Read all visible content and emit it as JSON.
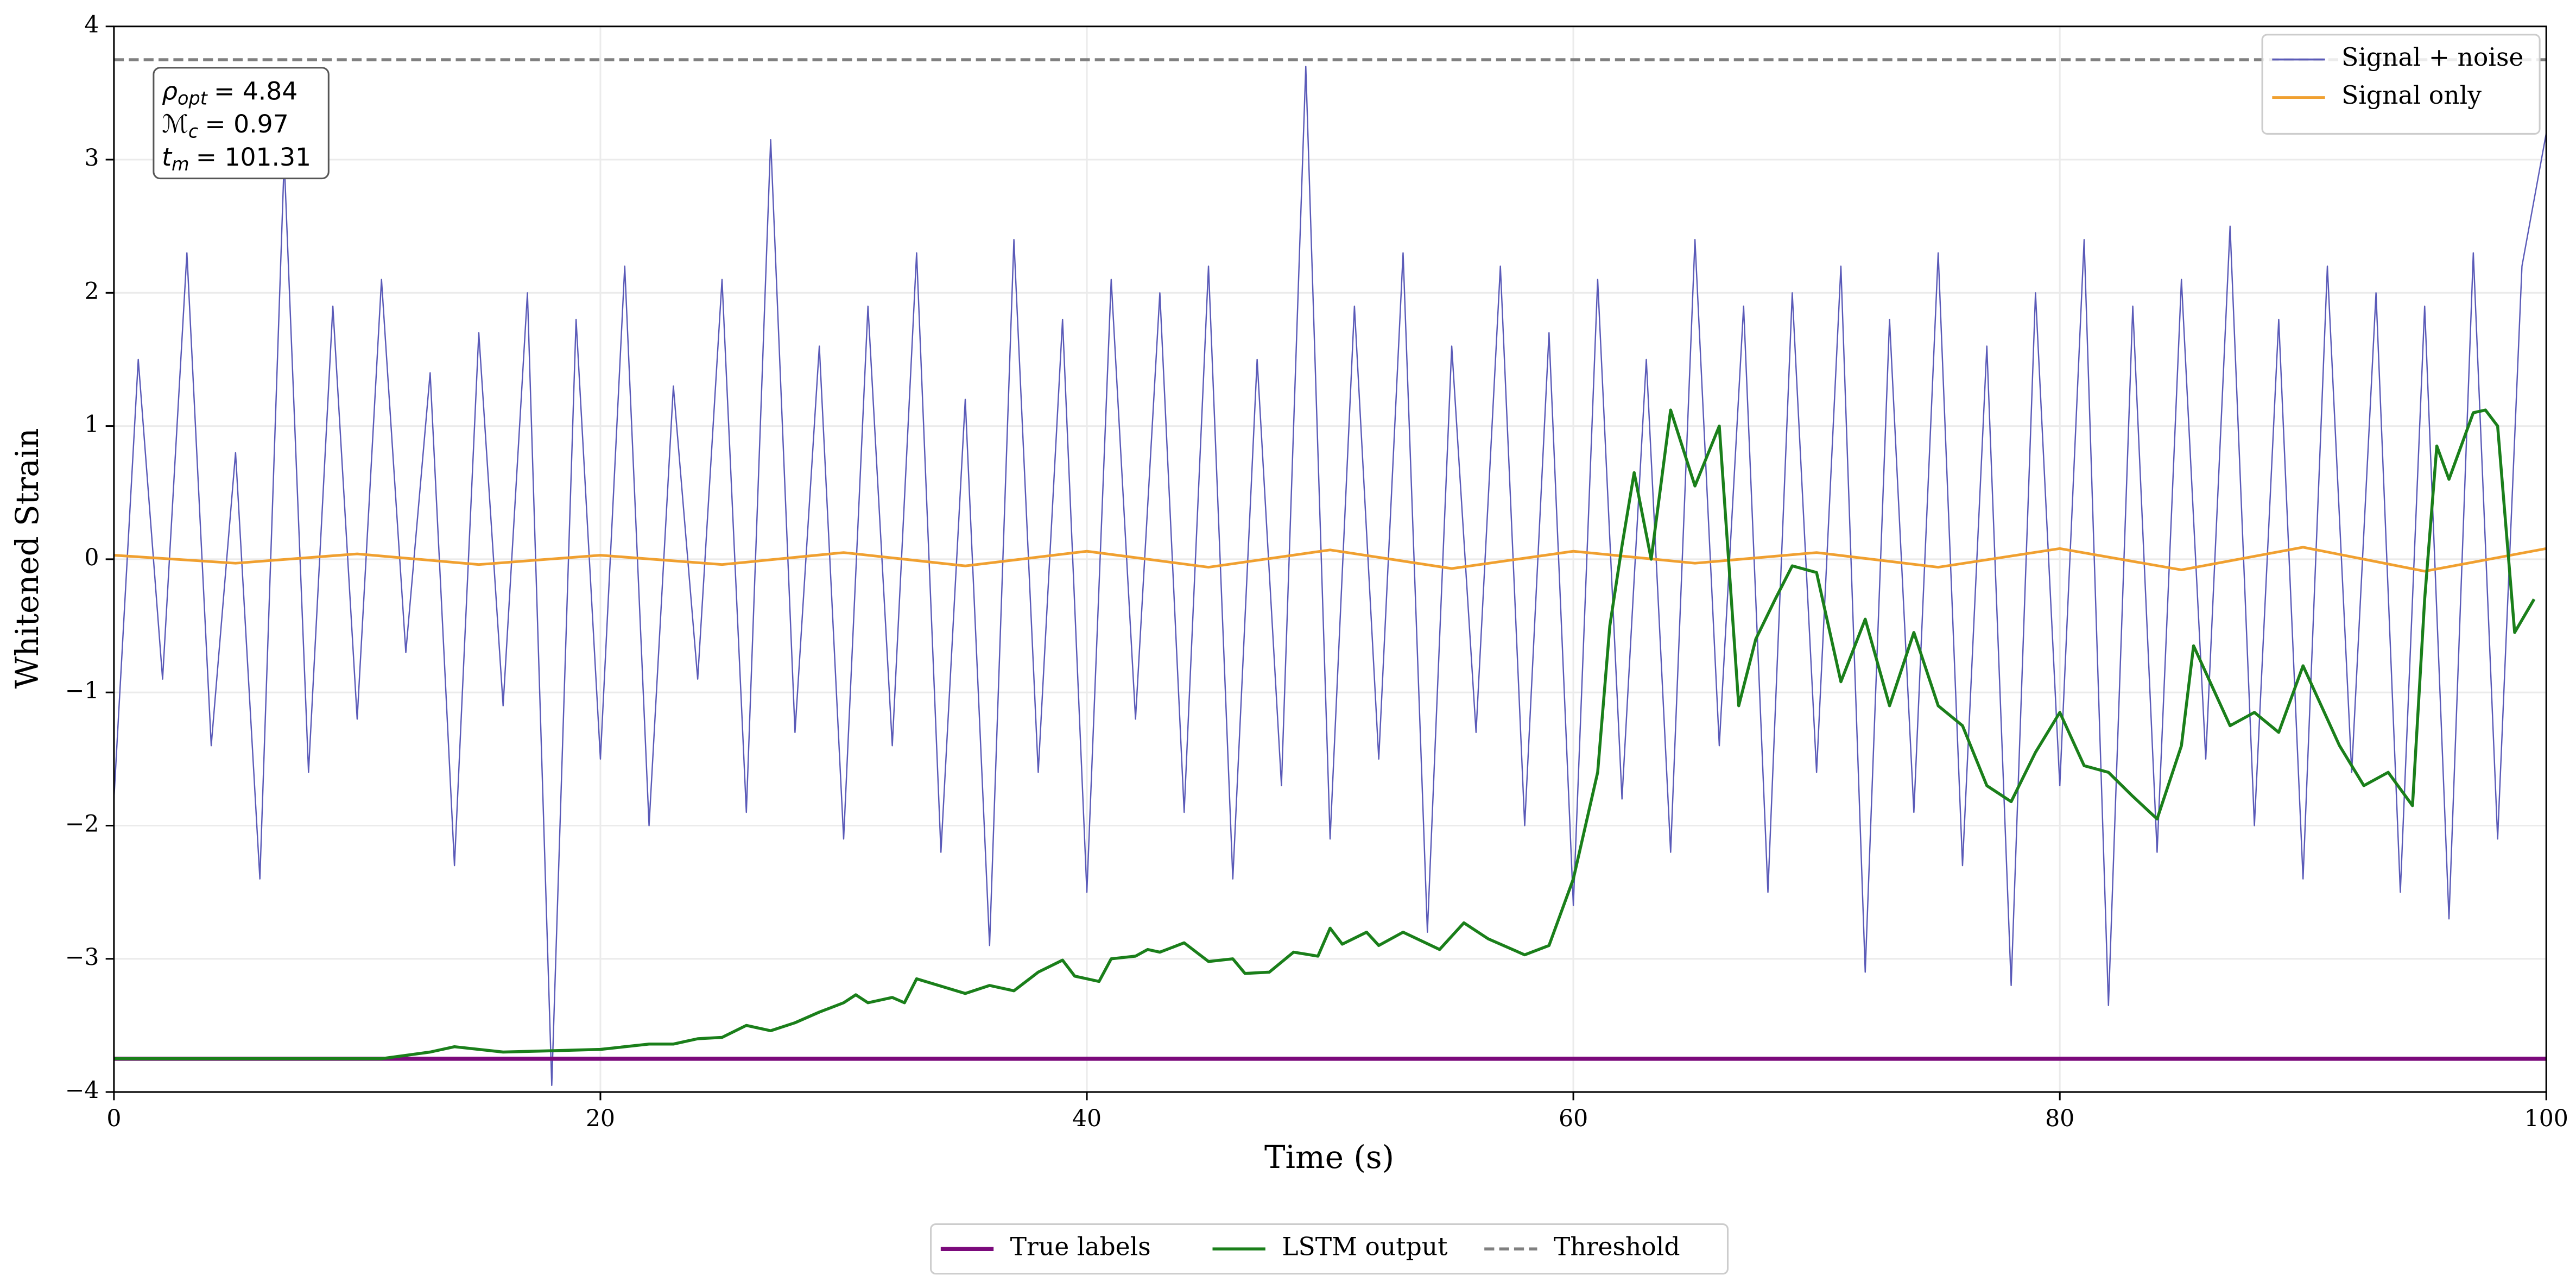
{
  "chart_data": {
    "type": "line",
    "xlabel": "Time (s)",
    "ylabel": "Whitened Strain",
    "xlim": [
      0,
      100
    ],
    "ylim": [
      -4,
      4
    ],
    "xticks": [
      0,
      20,
      40,
      60,
      80,
      100
    ],
    "yticks": [
      {
        "value": -4,
        "label": "−4"
      },
      {
        "value": -3,
        "label": "−3"
      },
      {
        "value": -2,
        "label": "−2"
      },
      {
        "value": -1,
        "label": "−1"
      },
      0,
      1,
      2,
      3,
      4
    ],
    "grid": true,
    "annotation": [
      {
        "symbol": "ρ",
        "sub": "opt",
        "text": "= 4.84"
      },
      {
        "symbol": "ℳ",
        "sub": "c",
        "text": "= 0.97"
      },
      {
        "symbol": "t",
        "sub": "m",
        "text": "= 101.31"
      }
    ],
    "series": [
      {
        "name": "Signal + noise",
        "color": "#5a5ab8",
        "line_width": 0.8,
        "legend": "upper right",
        "x": [
          0,
          1,
          2,
          3,
          4,
          5,
          6,
          7,
          8,
          9,
          10,
          11,
          12,
          13,
          14,
          15,
          16,
          17,
          18,
          19,
          20,
          21,
          22,
          23,
          24,
          25,
          26,
          27,
          28,
          29,
          30,
          31,
          32,
          33,
          34,
          35,
          36,
          37,
          38,
          39,
          40,
          41,
          42,
          43,
          44,
          45,
          46,
          47,
          48,
          49,
          50,
          51,
          52,
          53,
          54,
          55,
          56,
          57,
          58,
          59,
          60,
          61,
          62,
          63,
          64,
          65,
          66,
          67,
          68,
          69,
          70,
          71,
          72,
          73,
          74,
          75,
          76,
          77,
          78,
          79,
          80,
          81,
          82,
          83,
          84,
          85,
          86,
          87,
          88,
          89,
          90,
          91,
          92,
          93,
          94,
          95,
          96,
          97,
          98,
          99,
          100
        ],
        "values": [
          -1.8,
          1.5,
          -0.9,
          2.3,
          -1.4,
          0.8,
          -2.4,
          3.0,
          -1.6,
          1.9,
          -1.2,
          2.1,
          -0.7,
          1.4,
          -2.3,
          1.7,
          -1.1,
          2.0,
          -3.95,
          1.8,
          -1.5,
          2.2,
          -2.0,
          1.3,
          -0.9,
          2.1,
          -1.9,
          3.15,
          -1.3,
          1.6,
          -2.1,
          1.9,
          -1.4,
          2.3,
          -2.2,
          1.2,
          -2.9,
          2.4,
          -1.6,
          1.8,
          -2.5,
          2.1,
          -1.2,
          2.0,
          -1.9,
          2.2,
          -2.4,
          1.5,
          -1.7,
          3.7,
          -2.1,
          1.9,
          -1.5,
          2.3,
          -2.8,
          1.6,
          -1.3,
          2.2,
          -2.0,
          1.7,
          -2.6,
          2.1,
          -1.8,
          1.5,
          -2.2,
          2.4,
          -1.4,
          1.9,
          -2.5,
          2.0,
          -1.6,
          2.2,
          -3.1,
          1.8,
          -1.9,
          2.3,
          -2.3,
          1.6,
          -3.2,
          2.0,
          -1.7,
          2.4,
          -3.35,
          1.9,
          -2.2,
          2.1,
          -1.5,
          2.5,
          -2.0,
          1.8,
          -2.4,
          2.2,
          -1.6,
          2.0,
          -2.5,
          1.9,
          -2.7,
          2.3,
          -2.1,
          2.2,
          3.2
        ]
      },
      {
        "name": "Signal only",
        "color": "#f0a030",
        "line_width": 1.6,
        "legend": "upper right",
        "x": [
          0,
          5,
          10,
          15,
          20,
          25,
          30,
          35,
          40,
          45,
          50,
          55,
          60,
          65,
          70,
          75,
          80,
          85,
          90,
          95,
          100
        ],
        "values": [
          0.03,
          -0.03,
          0.04,
          -0.04,
          0.03,
          -0.04,
          0.05,
          -0.05,
          0.06,
          -0.06,
          0.07,
          -0.07,
          0.06,
          -0.03,
          0.05,
          -0.06,
          0.08,
          -0.08,
          0.09,
          -0.09,
          0.08
        ]
      },
      {
        "name": "True labels",
        "color": "#7b0a7b",
        "line_width": 2.5,
        "legend": "lower center",
        "x": [
          0,
          100
        ],
        "values": [
          -3.75,
          -3.75
        ]
      },
      {
        "name": "LSTM output",
        "color": "#1a7f1a",
        "line_width": 1.8,
        "legend": "lower center",
        "x": [
          0,
          11,
          13,
          14,
          16,
          18,
          20,
          22,
          23,
          24,
          25,
          26,
          27,
          28,
          29,
          30,
          30.5,
          31,
          32,
          32.5,
          33,
          35,
          36,
          37,
          38,
          39,
          39.5,
          40.5,
          41,
          42,
          42.5,
          43,
          44,
          45,
          46,
          46.5,
          47.5,
          48.5,
          49.5,
          50,
          50.5,
          51.5,
          52,
          53,
          54.5,
          55.5,
          56.5,
          58,
          59,
          60,
          61,
          61.5,
          62,
          62.5,
          63.2,
          64,
          65,
          66,
          66.8,
          67.5,
          68.3,
          69,
          70,
          71,
          72,
          73,
          74,
          75,
          76,
          77,
          78,
          79,
          80,
          81,
          82,
          83,
          84,
          85,
          85.5,
          87,
          88,
          89,
          90,
          91.5,
          92.5,
          93.5,
          94.5,
          95,
          95.5,
          96,
          97,
          97.5,
          98,
          98.7,
          99.5
        ],
        "values": [
          -3.75,
          -3.75,
          -3.7,
          -3.66,
          -3.7,
          -3.69,
          -3.68,
          -3.64,
          -3.64,
          -3.6,
          -3.59,
          -3.5,
          -3.54,
          -3.48,
          -3.4,
          -3.33,
          -3.27,
          -3.33,
          -3.29,
          -3.33,
          -3.15,
          -3.26,
          -3.2,
          -3.24,
          -3.1,
          -3.01,
          -3.13,
          -3.17,
          -3.0,
          -2.98,
          -2.93,
          -2.95,
          -2.88,
          -3.02,
          -3.0,
          -3.11,
          -3.1,
          -2.95,
          -2.98,
          -2.77,
          -2.89,
          -2.8,
          -2.9,
          -2.8,
          -2.93,
          -2.73,
          -2.85,
          -2.97,
          -2.9,
          -2.4,
          -1.6,
          -0.5,
          0.1,
          0.65,
          0.0,
          1.12,
          0.55,
          1.0,
          -1.1,
          -0.6,
          -0.3,
          -0.05,
          -0.1,
          -0.92,
          -0.45,
          -1.1,
          -0.55,
          -1.1,
          -1.25,
          -1.7,
          -1.82,
          -1.45,
          -1.15,
          -1.55,
          -1.6,
          -1.78,
          -1.95,
          -1.4,
          -0.65,
          -1.25,
          -1.15,
          -1.3,
          -0.8,
          -1.4,
          -1.7,
          -1.6,
          -1.85,
          -0.3,
          0.85,
          0.6,
          1.1,
          1.12,
          1.0,
          -0.55,
          -0.3
        ]
      },
      {
        "name": "Threshold",
        "color": "#808080",
        "line_width": 1.8,
        "dash": true,
        "legend": "lower center",
        "x": [
          0,
          100
        ],
        "values": [
          3.75,
          3.75
        ]
      }
    ]
  }
}
